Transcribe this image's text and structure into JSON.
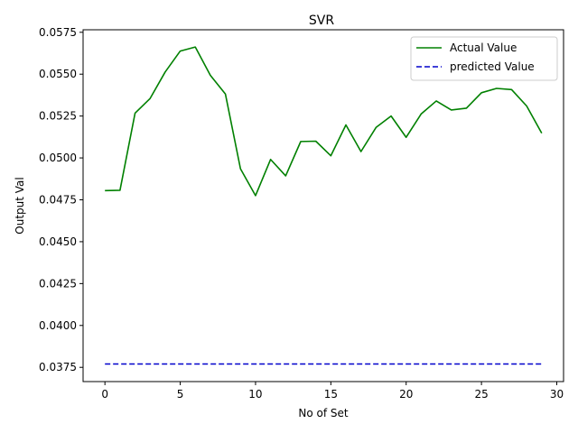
{
  "chart_data": {
    "type": "line",
    "title": "SVR",
    "xlabel": "No of Set",
    "ylabel": "Output Val",
    "xlim": [
      -1.45,
      30.45
    ],
    "ylim": [
      0.03665,
      0.05765
    ],
    "xticks": [
      0,
      5,
      10,
      15,
      20,
      25,
      30
    ],
    "xtick_labels": [
      "0",
      "5",
      "10",
      "15",
      "20",
      "25",
      "30"
    ],
    "yticks": [
      0.0375,
      0.04,
      0.0425,
      0.045,
      0.0475,
      0.05,
      0.0525,
      0.055,
      0.0575
    ],
    "ytick_labels": [
      "0.0375",
      "0.0400",
      "0.0425",
      "0.0450",
      "0.0475",
      "0.0500",
      "0.0525",
      "0.0550",
      "0.0575"
    ],
    "grid": false,
    "legend_position": "top-right",
    "x": [
      0,
      1,
      2,
      3,
      4,
      5,
      6,
      7,
      8,
      9,
      10,
      11,
      12,
      13,
      14,
      15,
      16,
      17,
      18,
      19,
      20,
      21,
      22,
      23,
      24,
      25,
      26,
      27,
      28,
      29
    ],
    "series": [
      {
        "name": "Actual Value",
        "color": "#008000",
        "style": "solid",
        "values": [
          0.04805,
          0.04807,
          0.05267,
          0.05355,
          0.05513,
          0.05638,
          0.05662,
          0.05493,
          0.05381,
          0.04935,
          0.04775,
          0.04991,
          0.04893,
          0.05098,
          0.051,
          0.05013,
          0.05197,
          0.05038,
          0.05182,
          0.0525,
          0.05123,
          0.05263,
          0.0534,
          0.05286,
          0.05297,
          0.05389,
          0.05415,
          0.05408,
          0.0531,
          0.05148
        ]
      },
      {
        "name": "predicted Value",
        "color": "#0000cc",
        "style": "dashed",
        "values": [
          0.0377,
          0.0377,
          0.0377,
          0.0377,
          0.0377,
          0.0377,
          0.0377,
          0.0377,
          0.0377,
          0.0377,
          0.0377,
          0.0377,
          0.0377,
          0.0377,
          0.0377,
          0.0377,
          0.0377,
          0.0377,
          0.0377,
          0.0377,
          0.0377,
          0.0377,
          0.0377,
          0.0377,
          0.0377,
          0.0377,
          0.0377,
          0.0377,
          0.0377,
          0.0377
        ]
      }
    ]
  }
}
